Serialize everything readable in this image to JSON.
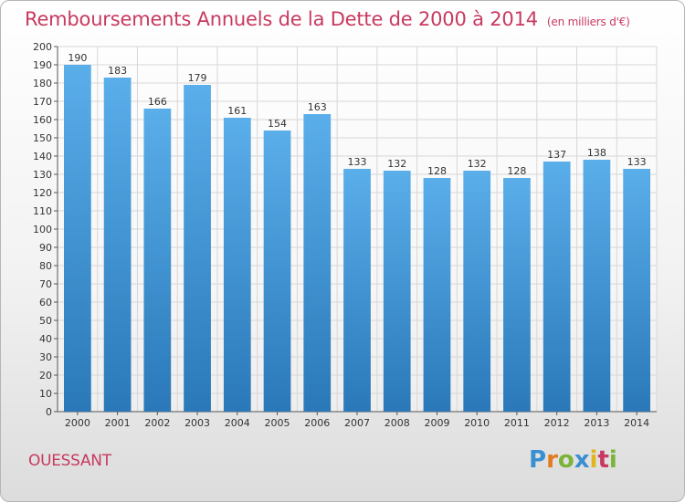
{
  "header": {
    "title": "Remboursements Annuels de la Dette de 2000 à 2014",
    "subtitle": "(en milliers d'€)"
  },
  "footer": {
    "commune": "OUESSANT",
    "logo": "Proxiti"
  },
  "colors": {
    "title": "#c8395f",
    "bar_top": "#5aaeea",
    "bar_bottom": "#2a78b8",
    "grid": "#d7d7d7"
  },
  "chart_data": {
    "type": "bar",
    "title": "Remboursements Annuels de la Dette de 2000 à 2014",
    "subtitle": "(en milliers d'€)",
    "categories": [
      "2000",
      "2001",
      "2002",
      "2003",
      "2004",
      "2005",
      "2006",
      "2007",
      "2008",
      "2009",
      "2010",
      "2011",
      "2012",
      "2013",
      "2014"
    ],
    "values": [
      190,
      183,
      166,
      179,
      161,
      154,
      163,
      133,
      132,
      128,
      132,
      128,
      137,
      138,
      133
    ],
    "ylim": [
      0,
      200
    ],
    "ytick_step": 10,
    "grid": true,
    "xlabel": "",
    "ylabel": ""
  }
}
